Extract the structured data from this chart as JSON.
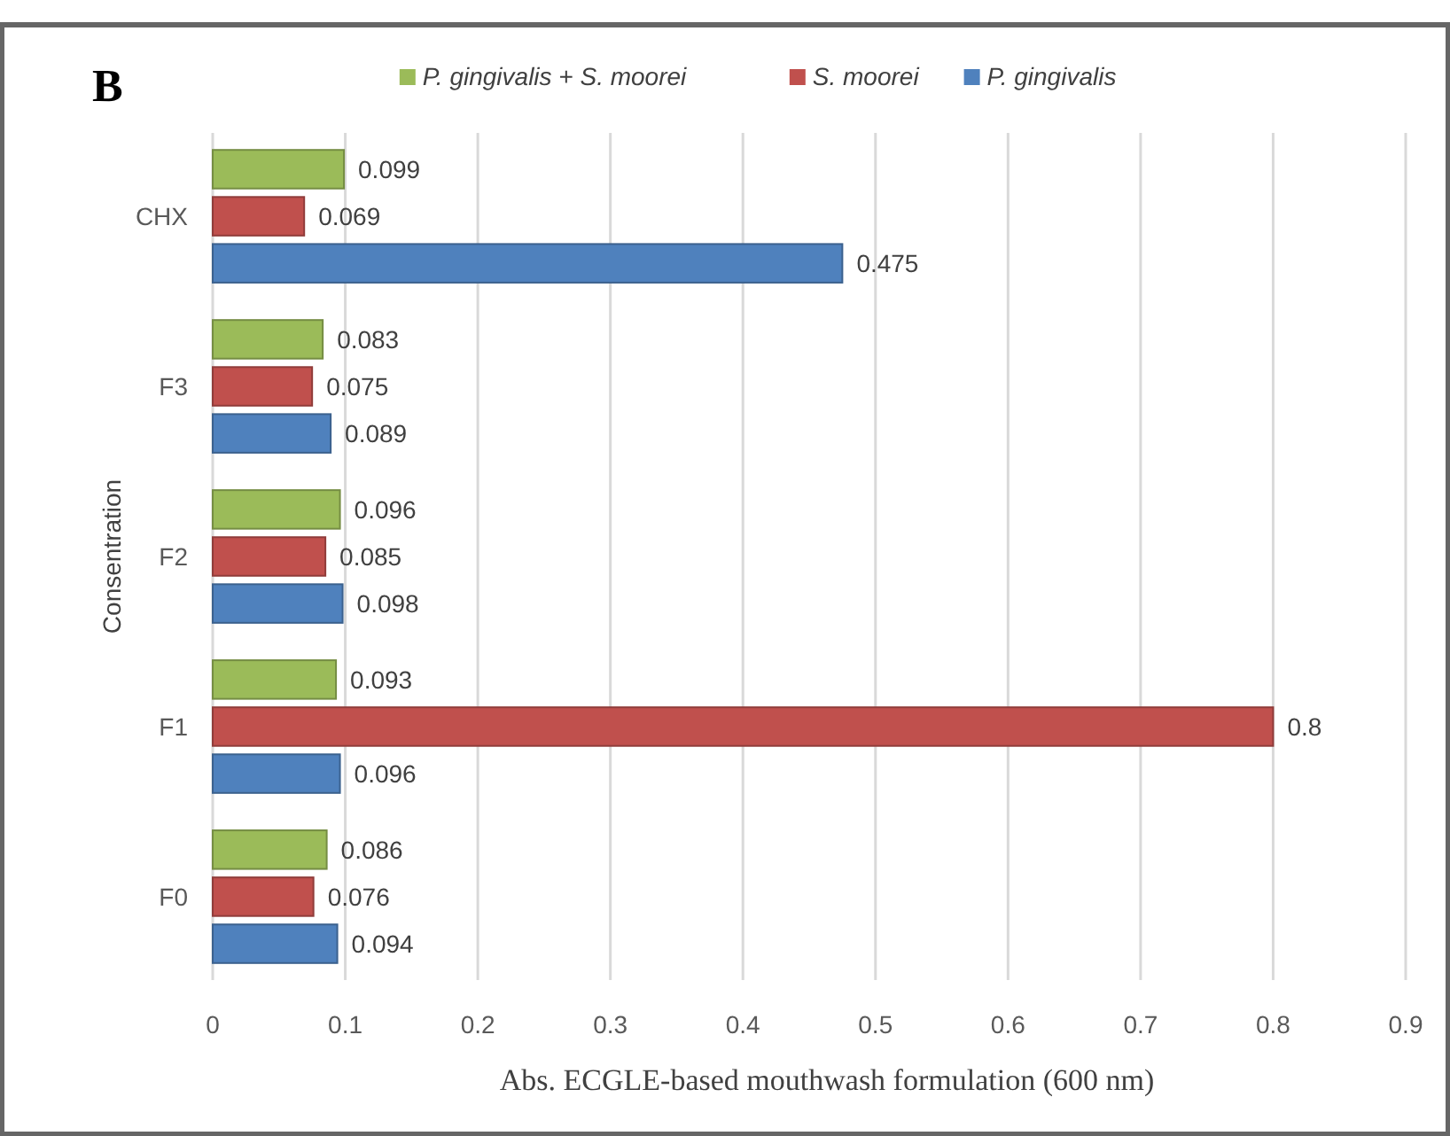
{
  "chart_data": {
    "type": "bar",
    "orientation": "horizontal",
    "title": "B",
    "xlabel": "Abs. ECGLE-based mouthwash formulation (600 nm)",
    "ylabel": "Consentration",
    "categories": [
      "CHX",
      "F3",
      "F2",
      "F1",
      "F0"
    ],
    "series": [
      {
        "name": "P. gingivalis + S. moorei",
        "color": "#9bbb59",
        "values": [
          0.099,
          0.083,
          0.096,
          0.093,
          0.086
        ]
      },
      {
        "name": "S. moorei",
        "color": "#c0504d",
        "values": [
          0.069,
          0.075,
          0.085,
          0.8,
          0.076
        ]
      },
      {
        "name": "P. gingivalis",
        "color": "#4f81bd",
        "values": [
          0.475,
          0.089,
          0.098,
          0.096,
          0.094
        ]
      }
    ],
    "xlim": [
      0,
      0.9
    ],
    "xticks": [
      0,
      0.1,
      0.2,
      0.3,
      0.4,
      0.5,
      0.6,
      0.7,
      0.8,
      0.9
    ],
    "grid": "x",
    "legend": "top",
    "data_labels": true
  }
}
